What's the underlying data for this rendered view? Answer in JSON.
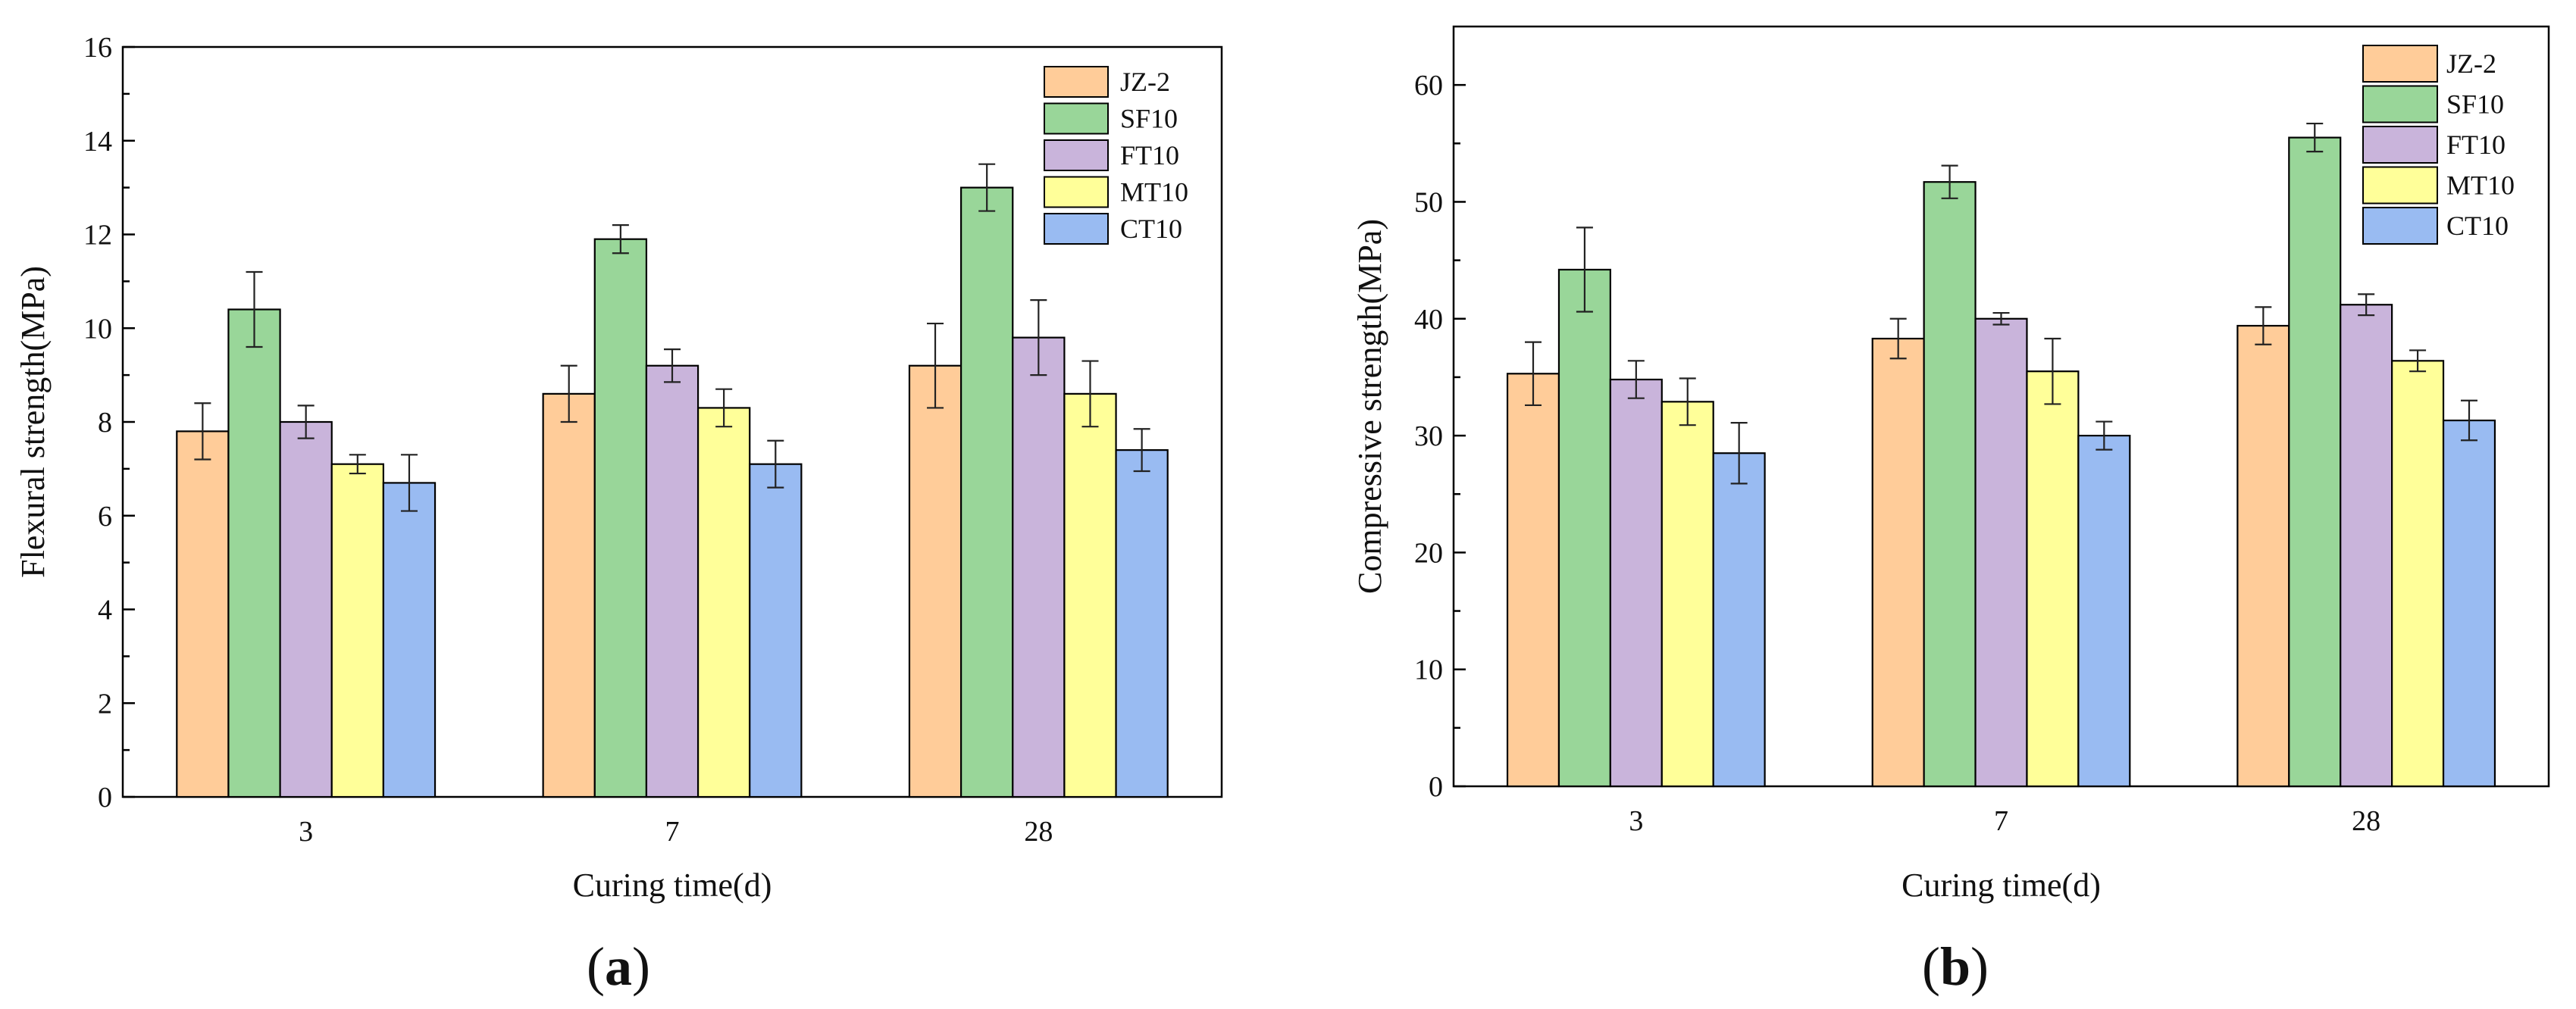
{
  "chart_data": [
    {
      "type": "bar",
      "panel_label": {
        "open": "(",
        "letter": "a",
        "close": ")"
      },
      "xlabel": "Curing time(d)",
      "ylabel": "Flexural strength(MPa)",
      "ylim": [
        0,
        16
      ],
      "yticks": [
        0,
        2,
        4,
        6,
        8,
        10,
        12,
        14,
        16
      ],
      "grid": false,
      "legend_position": "top-right",
      "categories": [
        "3",
        "7",
        "28"
      ],
      "series": [
        {
          "name": "JZ-2",
          "color": "#FFCC99",
          "values": [
            7.8,
            8.6,
            9.2
          ],
          "errors": [
            0.6,
            0.6,
            0.9
          ]
        },
        {
          "name": "SF10",
          "color": "#99D699",
          "values": [
            10.4,
            11.9,
            13.0
          ],
          "errors": [
            0.8,
            0.3,
            0.5
          ]
        },
        {
          "name": "FT10",
          "color": "#C9B4DB",
          "values": [
            8.0,
            9.2,
            9.8
          ],
          "errors": [
            0.35,
            0.35,
            0.8
          ]
        },
        {
          "name": "MT10",
          "color": "#FFFF99",
          "values": [
            7.1,
            8.3,
            8.6
          ],
          "errors": [
            0.2,
            0.4,
            0.7
          ]
        },
        {
          "name": "CT10",
          "color": "#99BBF2",
          "values": [
            6.7,
            7.1,
            7.4
          ],
          "errors": [
            0.6,
            0.5,
            0.45
          ]
        }
      ]
    },
    {
      "type": "bar",
      "panel_label": {
        "open": "(",
        "letter": "b",
        "close": ")"
      },
      "xlabel": "Curing time(d)",
      "ylabel": "Compressive strength(MPa)",
      "ylim": [
        0,
        65
      ],
      "yticks": [
        0,
        10,
        20,
        30,
        40,
        50,
        60
      ],
      "grid": false,
      "legend_position": "top-right",
      "categories": [
        "3",
        "7",
        "28"
      ],
      "series": [
        {
          "name": "JZ-2",
          "color": "#FFCC99",
          "values": [
            35.3,
            38.3,
            39.4
          ],
          "errors": [
            2.7,
            1.7,
            1.6
          ]
        },
        {
          "name": "SF10",
          "color": "#99D699",
          "values": [
            44.2,
            51.7,
            55.5
          ],
          "errors": [
            3.6,
            1.4,
            1.2
          ]
        },
        {
          "name": "FT10",
          "color": "#C9B4DB",
          "values": [
            34.8,
            40.0,
            41.2
          ],
          "errors": [
            1.6,
            0.5,
            0.9
          ]
        },
        {
          "name": "MT10",
          "color": "#FFFF99",
          "values": [
            32.9,
            35.5,
            36.4
          ],
          "errors": [
            2.0,
            2.8,
            0.9
          ]
        },
        {
          "name": "CT10",
          "color": "#99BBF2",
          "values": [
            28.5,
            30.0,
            31.3
          ],
          "errors": [
            2.6,
            1.2,
            1.7
          ]
        }
      ]
    }
  ]
}
